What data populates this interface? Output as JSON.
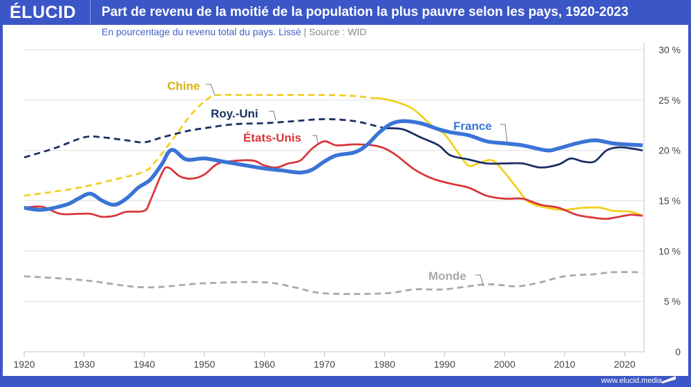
{
  "header": {
    "logo": "ÉLUCID",
    "title": "Part de revenu de la moitié de la population la plus pauvre selon les pays, 1920-2023"
  },
  "subtitle": {
    "text": "En pourcentage du revenu total du pays. Lissé",
    "separator": "|",
    "source": "Source : WID"
  },
  "footer": {
    "url": "www.elucid.media"
  },
  "colors": {
    "brand": "#3b56c6",
    "france": "#3a74d6",
    "usa": "#d9363a",
    "uk": "#1b2f63",
    "china": "#f2cf1f",
    "world": "#a9a9a9"
  },
  "chart_data": {
    "type": "line",
    "title": "Part de revenu de la moitié de la population la plus pauvre selon les pays, 1920-2023",
    "xlim": [
      1920,
      2023
    ],
    "ylim": [
      0,
      30
    ],
    "x_ticks": [
      "1920",
      "1930",
      "1940",
      "1950",
      "1960",
      "1970",
      "1980",
      "1990",
      "2000",
      "2010",
      "2020"
    ],
    "y_ticks": [
      "0",
      "5 %",
      "10 %",
      "15 %",
      "20 %",
      "25 %",
      "30 %"
    ],
    "y_axis_side": "right",
    "grid": true,
    "series": [
      {
        "name": "France",
        "key": "france",
        "style": "solid",
        "x": [
          1920,
          1923,
          1927,
          1929,
          1931,
          1933,
          1935,
          1937,
          1939,
          1941,
          1943,
          1944,
          1945,
          1947,
          1950,
          1953,
          1957,
          1960,
          1963,
          1966,
          1968,
          1970,
          1972,
          1975,
          1977,
          1979,
          1981,
          1983,
          1986,
          1989,
          1991,
          1994,
          1997,
          2000,
          2003,
          2007,
          2009,
          2012,
          2015,
          2018,
          2020,
          2023
        ],
        "y": [
          14.3,
          14.1,
          14.6,
          15.2,
          15.7,
          15.0,
          14.6,
          15.2,
          16.3,
          17.1,
          18.7,
          19.8,
          20.0,
          19.1,
          19.2,
          18.9,
          18.5,
          18.2,
          18.0,
          17.8,
          18.1,
          18.9,
          19.5,
          19.8,
          20.5,
          21.7,
          22.6,
          22.9,
          22.7,
          22.1,
          21.8,
          21.5,
          20.9,
          20.7,
          20.5,
          20.0,
          20.2,
          20.7,
          21.0,
          20.7,
          20.6,
          20.5
        ]
      },
      {
        "name": "États-Unis",
        "key": "usa",
        "style": "solid",
        "x": [
          1920,
          1923,
          1926,
          1929,
          1931,
          1933,
          1935,
          1937,
          1940,
          1941,
          1943,
          1944,
          1946,
          1948,
          1950,
          1952,
          1954,
          1958,
          1960,
          1962,
          1964,
          1966,
          1968,
          1970,
          1972,
          1975,
          1978,
          1980,
          1982,
          1985,
          1988,
          1991,
          1994,
          1997,
          2000,
          2003,
          2006,
          2009,
          2012,
          2015,
          2017,
          2019,
          2021,
          2023
        ],
        "y": [
          14.3,
          14.4,
          13.7,
          13.7,
          13.7,
          13.4,
          13.5,
          13.9,
          14.0,
          15.0,
          17.8,
          18.3,
          17.4,
          17.2,
          17.6,
          18.6,
          18.9,
          19.0,
          18.5,
          18.3,
          18.7,
          19.0,
          20.2,
          20.9,
          20.5,
          20.6,
          20.5,
          20.2,
          19.5,
          18.1,
          17.2,
          16.7,
          16.3,
          15.5,
          15.2,
          15.2,
          14.6,
          14.3,
          13.6,
          13.3,
          13.2,
          13.4,
          13.6,
          13.5
        ]
      },
      {
        "name": "Roy.-Uni",
        "key": "uk",
        "style": "dashed-then-solid",
        "dashed_until": 1980,
        "x": [
          1920,
          1925,
          1930,
          1933,
          1937,
          1940,
          1943,
          1947,
          1950,
          1955,
          1960,
          1965,
          1970,
          1975,
          1980,
          1983,
          1986,
          1989,
          1991,
          1994,
          1997,
          2000,
          2003,
          2006,
          2009,
          2011,
          2013,
          2015,
          2017,
          2019,
          2021,
          2023
        ],
        "y": [
          19.3,
          20.2,
          21.3,
          21.3,
          21.0,
          20.8,
          21.3,
          21.9,
          22.2,
          22.6,
          22.7,
          22.9,
          23.1,
          22.9,
          22.2,
          22.1,
          21.3,
          20.5,
          19.5,
          19.1,
          18.7,
          18.7,
          18.7,
          18.3,
          18.6,
          19.2,
          18.9,
          18.9,
          20.0,
          20.3,
          20.2,
          20.0
        ]
      },
      {
        "name": "Chine",
        "key": "china",
        "style": "dashed-then-solid",
        "dashed_until": 1978,
        "x": [
          1920,
          1925,
          1930,
          1935,
          1940,
          1942,
          1945,
          1948,
          1951,
          1953,
          1960,
          1970,
          1975,
          1978,
          1980,
          1983,
          1985,
          1988,
          1990,
          1992,
          1994,
          1996,
          1998,
          2000,
          2002,
          2004,
          2007,
          2010,
          2013,
          2016,
          2018,
          2021,
          2023
        ],
        "y": [
          15.5,
          15.9,
          16.4,
          17.1,
          17.9,
          19.0,
          21.3,
          23.7,
          25.3,
          25.5,
          25.5,
          25.5,
          25.4,
          25.2,
          25.1,
          24.6,
          24.0,
          22.4,
          21.6,
          20.0,
          18.5,
          18.8,
          19.0,
          17.8,
          16.3,
          14.9,
          14.3,
          14.1,
          14.3,
          14.3,
          14.0,
          13.9,
          13.5
        ]
      },
      {
        "name": "Monde",
        "key": "world",
        "style": "dashed",
        "x": [
          1920,
          1930,
          1940,
          1950,
          1960,
          1965,
          1970,
          1980,
          1985,
          1990,
          1997,
          2002,
          2006,
          2010,
          2015,
          2018,
          2023
        ],
        "y": [
          7.5,
          7.1,
          6.4,
          6.8,
          6.9,
          6.4,
          5.8,
          5.8,
          6.2,
          6.2,
          6.7,
          6.5,
          6.9,
          7.5,
          7.7,
          7.9,
          7.9
        ]
      }
    ]
  }
}
